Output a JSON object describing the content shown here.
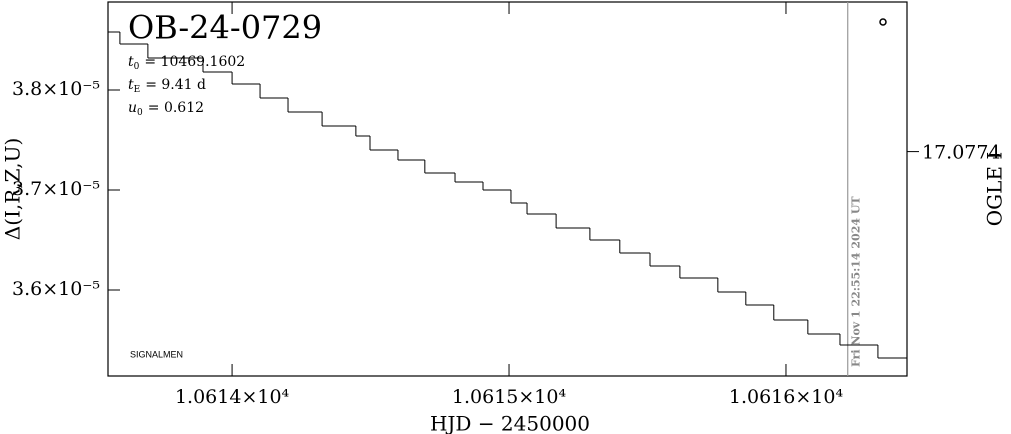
{
  "chart_data": {
    "type": "step",
    "title": "OB-24-0729",
    "parameters": [
      {
        "symbol": "t",
        "sub": "0",
        "text": "= 10469.1602"
      },
      {
        "symbol": "t",
        "sub": "E",
        "text": "= 9.41 d"
      },
      {
        "symbol": "u",
        "sub": "0",
        "text": "= 0.612"
      }
    ],
    "credit": "SIGNALMEN",
    "x_label": "HJD − 2450000",
    "y_label": "Δ(I,R,Z,U)",
    "y2_label": "OGLE I",
    "now_marker": {
      "x": 10616.223,
      "label": "Fri Nov  1 22:55:14 2024 UT"
    },
    "color": "#000000",
    "x": [
      10613.552,
      10613.595,
      10613.696,
      10613.895,
      10614.0,
      10614.101,
      10614.202,
      10614.325,
      10614.447,
      10614.498,
      10614.599,
      10614.696,
      10614.805,
      10614.906,
      10615.007,
      10615.065,
      10615.17,
      10615.292,
      10615.4,
      10615.509,
      10615.617,
      10615.754,
      10615.855,
      10615.956,
      10616.079,
      10616.195,
      10616.332,
      10616.437
    ],
    "values": [
      3.858e-05,
      3.846e-05,
      3.832e-05,
      3.818e-05,
      3.806e-05,
      3.792e-05,
      3.778e-05,
      3.764e-05,
      3.754e-05,
      3.74e-05,
      3.73e-05,
      3.717e-05,
      3.708e-05,
      3.7e-05,
      3.687e-05,
      3.676e-05,
      3.662e-05,
      3.65e-05,
      3.637e-05,
      3.624e-05,
      3.612e-05,
      3.598e-05,
      3.585e-05,
      3.57e-05,
      3.556e-05,
      3.545e-05,
      3.532e-05,
      3.532e-05
    ],
    "xlim": [
      10613.552,
      10616.437
    ],
    "xticks": [
      {
        "value": 10614,
        "label": "1.0614×10⁴"
      },
      {
        "value": 10615,
        "label": "1.0615×10⁴"
      },
      {
        "value": 10616,
        "label": "1.0616×10⁴"
      }
    ],
    "ylim": [
      3.514e-05,
      3.888e-05
    ],
    "yticks": [
      {
        "value": 3.6e-05,
        "label": "3.6×10⁻⁵"
      },
      {
        "value": 3.7e-05,
        "label": "3.7×10⁻⁵"
      },
      {
        "value": 3.8e-05,
        "label": "3.8×10⁻⁵"
      }
    ],
    "y2lim": [
      17.07744,
      17.07734
    ],
    "y2ticks": [
      17.0774
    ]
  }
}
